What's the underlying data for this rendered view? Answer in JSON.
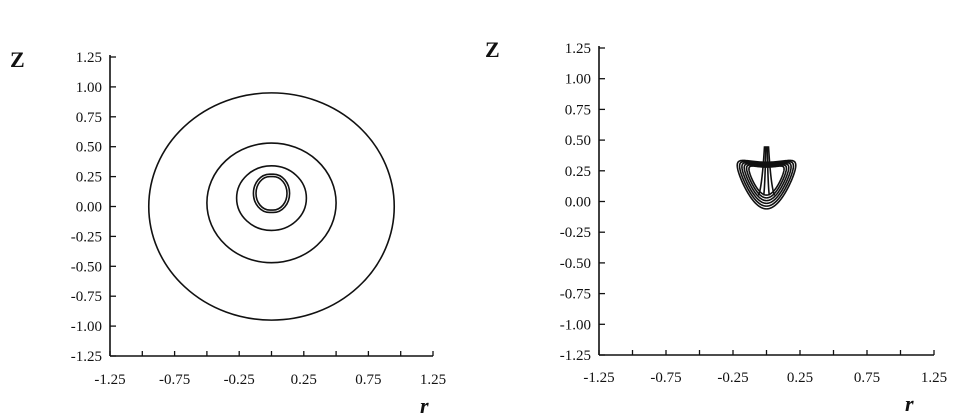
{
  "chart_data": [
    {
      "type": "line",
      "panel": "left",
      "xlabel": "r",
      "ylabel": "Z",
      "xlim": [
        -1.25,
        1.25
      ],
      "ylim": [
        -1.25,
        1.25
      ],
      "x_ticks": [
        "-1.25",
        "-0.75",
        "-0.25",
        "0.25",
        "0.75",
        "1.25"
      ],
      "y_ticks": [
        "1.25",
        "1.00",
        "0.75",
        "0.50",
        "0.25",
        "0.00",
        "-0.25",
        "-0.50",
        "-0.75",
        "-1.00",
        "-1.25"
      ],
      "grid": false,
      "series": [
        {
          "shape": "circle",
          "cx": 0.0,
          "cz": 0.0,
          "r": 0.95
        },
        {
          "shape": "circle",
          "cx": 0.0,
          "cz": 0.03,
          "r": 0.5
        },
        {
          "shape": "circle",
          "cx": 0.0,
          "cz": 0.07,
          "r": 0.27
        },
        {
          "shape": "capsule",
          "x": [
            -0.14,
            0.14
          ],
          "z": [
            -0.05,
            0.27
          ]
        },
        {
          "shape": "capsule",
          "x": [
            -0.12,
            0.12
          ],
          "z": [
            -0.03,
            0.25
          ]
        }
      ]
    },
    {
      "type": "line",
      "panel": "right",
      "xlabel": "r",
      "ylabel": "Z",
      "xlim": [
        -1.25,
        1.25
      ],
      "ylim": [
        -1.25,
        1.25
      ],
      "x_ticks": [
        "-1.25",
        "-0.75",
        "-0.25",
        "0.25",
        "0.75",
        "1.25"
      ],
      "y_ticks": [
        "1.25",
        "1.00",
        "0.75",
        "0.50",
        "0.25",
        "0.00",
        "-0.25",
        "-0.50",
        "-0.75",
        "-1.00",
        "-1.25"
      ],
      "grid": false,
      "series": [
        {
          "shape": "heart",
          "scale": 1.0
        },
        {
          "shape": "heart",
          "scale": 0.92
        },
        {
          "shape": "heart",
          "scale": 0.84
        },
        {
          "shape": "heart",
          "scale": 0.76
        },
        {
          "shape": "heart",
          "scale": 0.68
        },
        {
          "shape": "heart",
          "scale": 0.6
        }
      ]
    }
  ]
}
